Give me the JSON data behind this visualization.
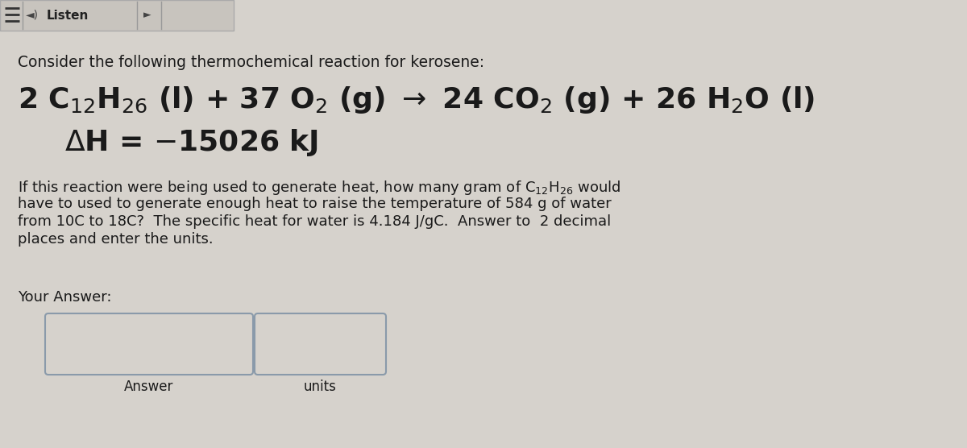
{
  "bg_color": "#d6d2cc",
  "text_color": "#1a1a1a",
  "header_text": "Consider the following thermochemical reaction for kerosene:",
  "your_answer_label": "Your Answer:",
  "answer_label": "Answer",
  "units_label": "units",
  "header_fontsize": 13.5,
  "reaction_fontsize": 26,
  "question_fontsize": 13,
  "label_fontsize": 12,
  "box_edge_color": "#8a9aaa",
  "box_face_color": "#d6d2cc"
}
